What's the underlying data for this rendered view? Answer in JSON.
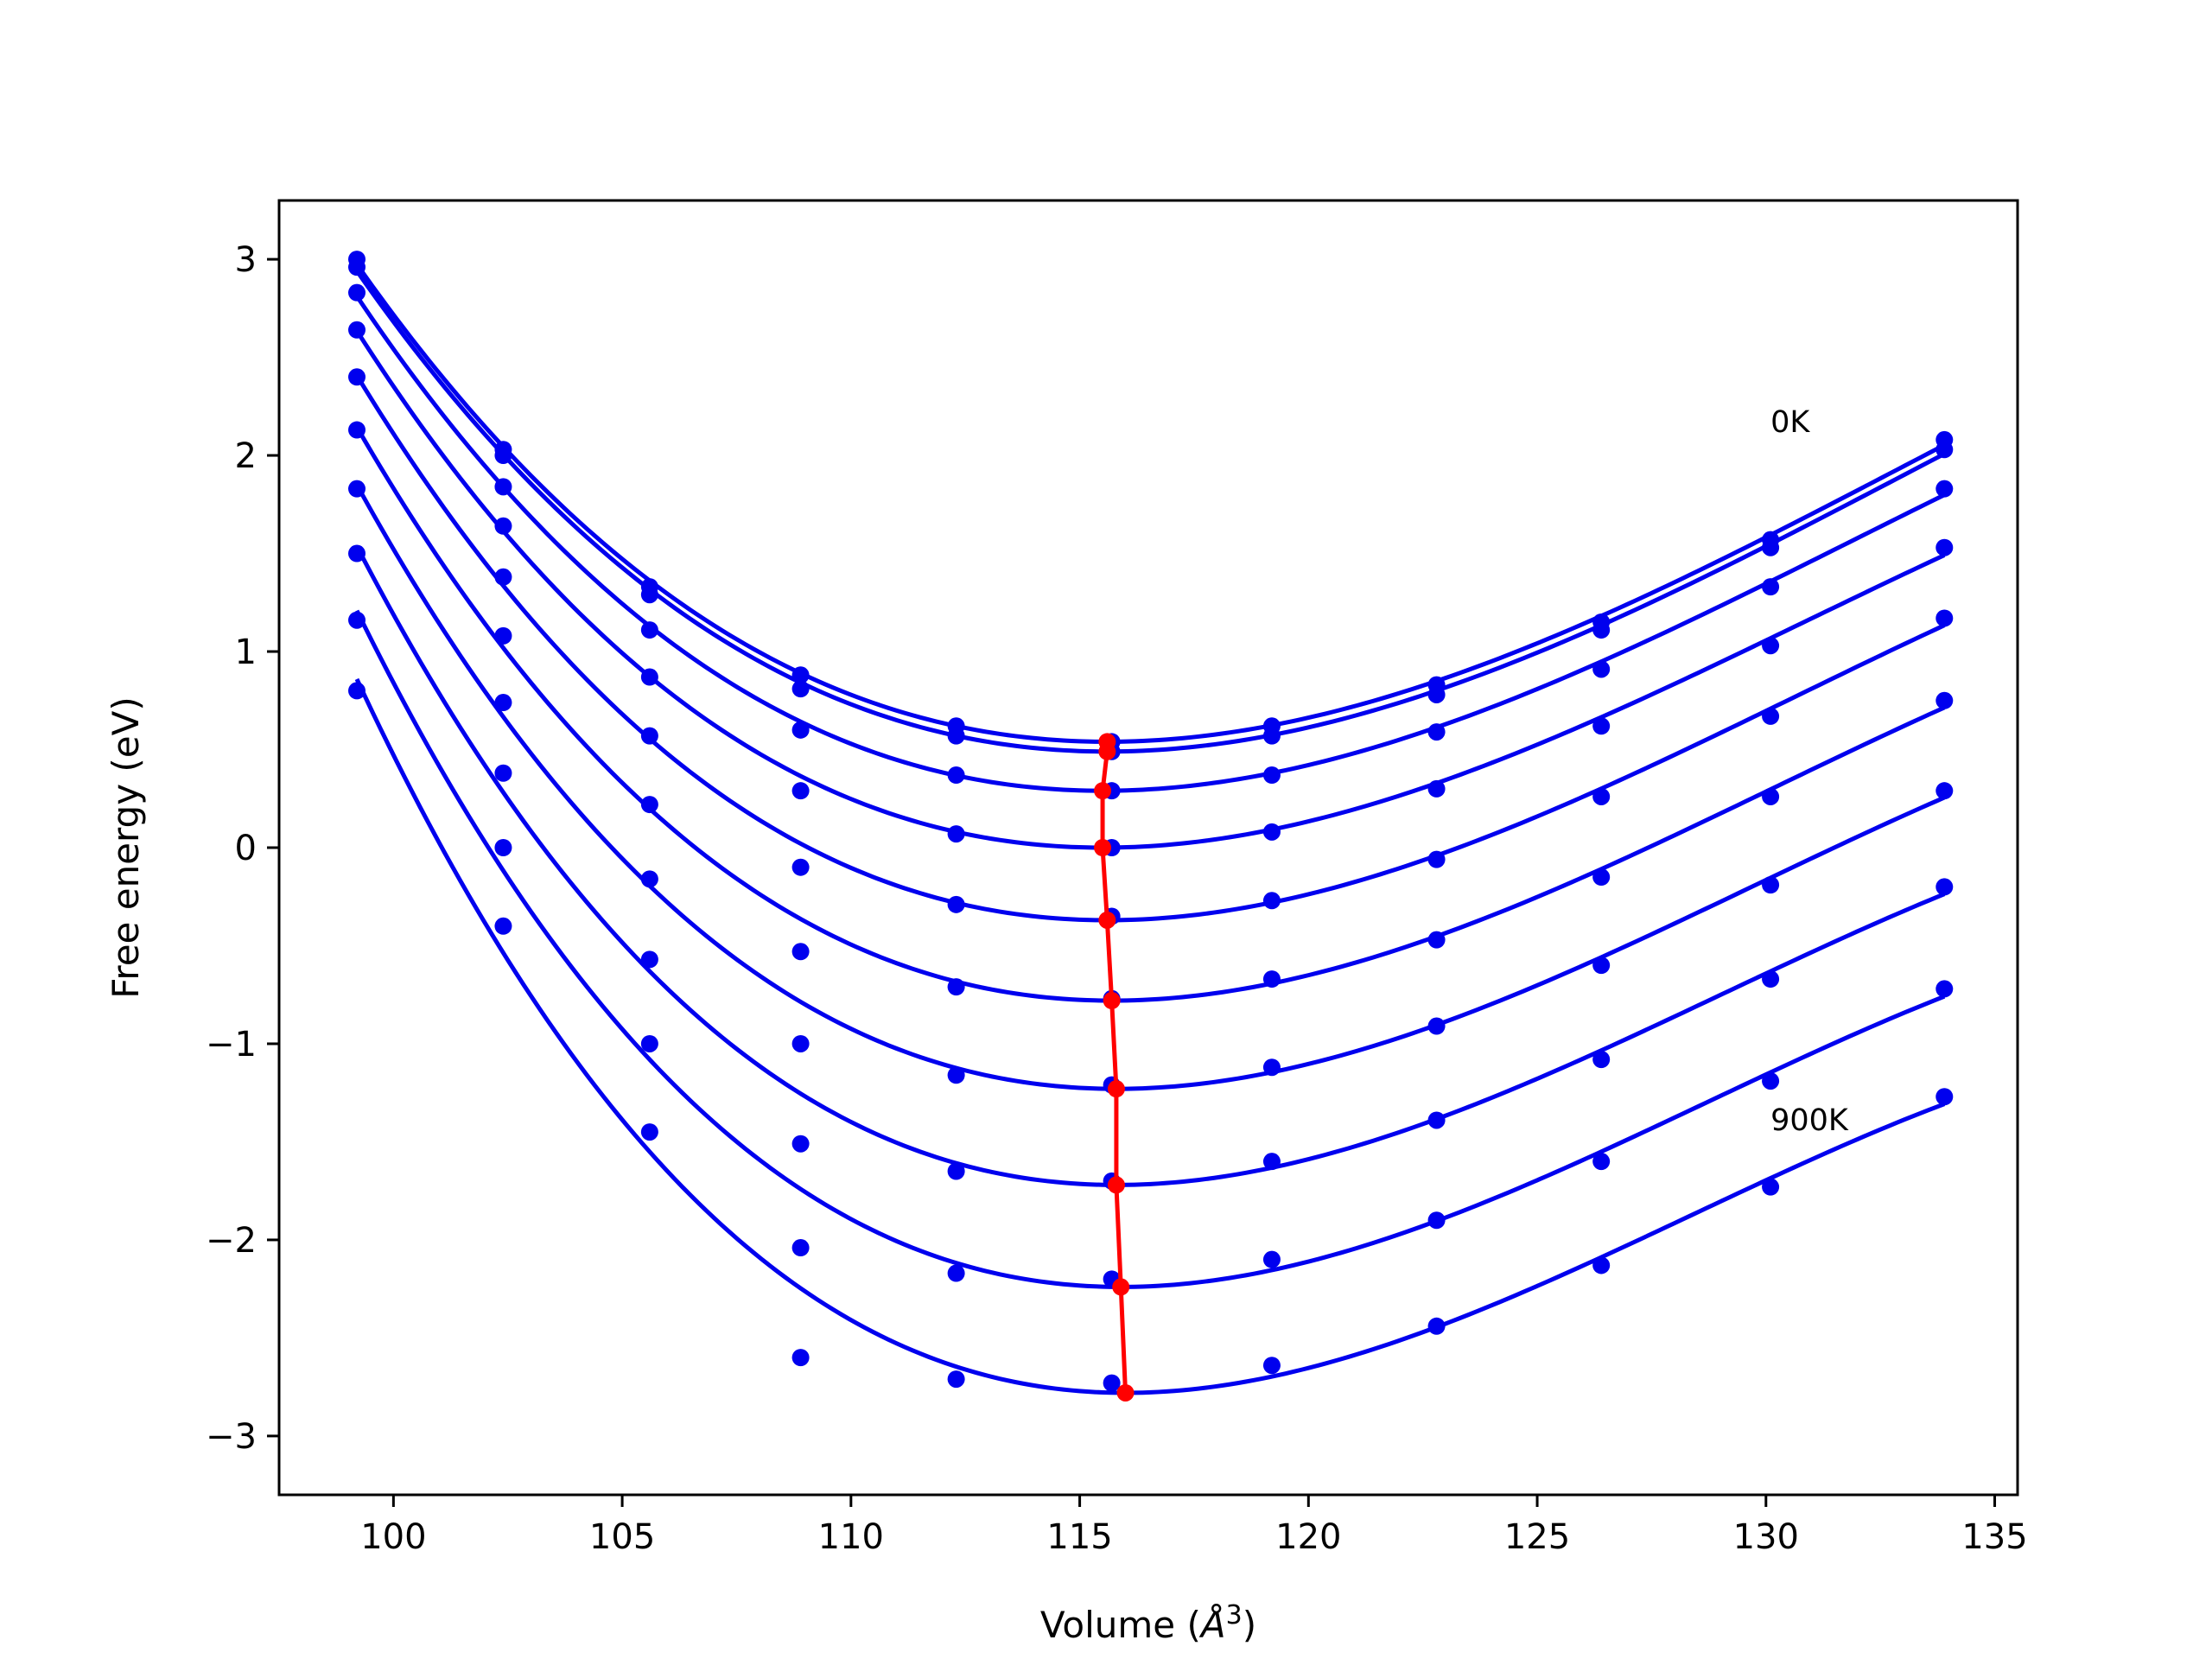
{
  "chart_data": {
    "type": "scatter",
    "xlabel": "Volume (Å³)",
    "xlabel_parts": {
      "prefix": "Volume (",
      "symbol": "Å",
      "sup": "3",
      "suffix": ")"
    },
    "ylabel": "Free energy (eV)",
    "xlim": [
      97.5,
      135.5
    ],
    "ylim": [
      -3.3,
      3.3
    ],
    "x_ticks": [
      100,
      105,
      110,
      115,
      120,
      125,
      130,
      135
    ],
    "x_tick_labels": [
      "100",
      "105",
      "110",
      "115",
      "120",
      "125",
      "130",
      "135"
    ],
    "y_ticks": [
      -3,
      -2,
      -1,
      0,
      1,
      2,
      3
    ],
    "y_tick_labels": [
      "−3",
      "−2",
      "−1",
      "0",
      "1",
      "2",
      "3"
    ],
    "volumes": [
      99.2,
      102.4,
      105.6,
      108.9,
      112.3,
      115.7,
      119.2,
      122.8,
      126.4,
      130.1,
      133.9
    ],
    "series": [
      {
        "values": [
          3.0,
          2.03,
          1.33,
          0.88,
          0.62,
          0.54,
          0.62,
          0.83,
          1.15,
          1.57,
          2.08
        ],
        "min": [
          115.6,
          0.54
        ],
        "fit_extra": [
          -1.5,
          5.5
        ]
      },
      {
        "values": [
          2.96,
          2.0,
          1.29,
          0.81,
          0.57,
          0.49,
          0.57,
          0.78,
          1.11,
          1.53,
          2.03
        ],
        "min": [
          115.6,
          0.49
        ],
        "fit_extra": [
          -1.5,
          5.5
        ]
      },
      {
        "values": [
          2.83,
          1.84,
          1.11,
          0.6,
          0.37,
          0.29,
          0.37,
          0.59,
          0.91,
          1.33,
          1.83
        ],
        "min": [
          115.5,
          0.29
        ],
        "fit_extra": [
          -1.3,
          5.5
        ]
      },
      {
        "values": [
          2.64,
          1.64,
          0.87,
          0.29,
          0.07,
          0.0,
          0.08,
          0.3,
          0.62,
          1.03,
          1.53
        ],
        "min": [
          115.5,
          0.0
        ],
        "fit_extra": [
          -1.0,
          5.5
        ]
      },
      {
        "values": [
          2.4,
          1.38,
          0.57,
          -0.1,
          -0.29,
          -0.35,
          -0.27,
          -0.06,
          0.26,
          0.67,
          1.17
        ],
        "min": [
          115.6,
          -0.37
        ],
        "fit_extra": [
          -0.8,
          5.5
        ]
      },
      {
        "values": [
          2.13,
          1.08,
          0.22,
          -0.53,
          -0.71,
          -0.77,
          -0.67,
          -0.47,
          -0.15,
          0.26,
          0.75
        ],
        "min": [
          115.7,
          -0.78
        ],
        "fit_extra": [
          -0.5,
          5.5
        ]
      },
      {
        "values": [
          1.83,
          0.74,
          -0.16,
          -1.0,
          -1.16,
          -1.21,
          -1.12,
          -0.91,
          -0.6,
          -0.19,
          0.29
        ],
        "min": [
          115.8,
          -1.23
        ],
        "fit_extra": [
          -0.3,
          5.5
        ]
      },
      {
        "values": [
          1.5,
          0.38,
          -0.57,
          -1.51,
          -1.65,
          -1.7,
          -1.6,
          -1.39,
          -1.08,
          -0.67,
          -0.2
        ],
        "min": [
          115.8,
          -1.72
        ],
        "fit_extra": [
          0.0,
          5.5
        ]
      },
      {
        "values": [
          1.16,
          0.0,
          -1.0,
          -2.04,
          -2.17,
          -2.2,
          -2.1,
          -1.9,
          -1.6,
          -1.19,
          -0.72
        ],
        "min": [
          115.9,
          -2.24
        ],
        "fit_extra": [
          0.3,
          5.5
        ]
      },
      {
        "values": [
          0.8,
          -0.4,
          -1.45,
          -2.6,
          -2.71,
          -2.73,
          -2.64,
          -2.44,
          -2.13,
          -1.73,
          -1.27
        ],
        "min": [
          116.0,
          -2.78
        ],
        "fit_extra": [
          0.6,
          5.5
        ]
      }
    ],
    "min_line": {
      "points": [
        [
          115.6,
          0.54
        ],
        [
          115.6,
          0.49
        ],
        [
          115.5,
          0.29
        ],
        [
          115.5,
          0.0
        ],
        [
          115.6,
          -0.37
        ],
        [
          115.7,
          -0.78
        ],
        [
          115.8,
          -1.23
        ],
        [
          115.8,
          -1.72
        ],
        [
          115.9,
          -2.24
        ],
        [
          116.0,
          -2.78
        ]
      ]
    },
    "annotations": [
      {
        "text": "0K",
        "x": 130.1,
        "y": 2.12
      },
      {
        "text": "900K",
        "x": 130.1,
        "y": -1.44
      }
    ],
    "colors": {
      "series": "#0000ee",
      "min_line": "#ff0000",
      "axes": "#000000"
    },
    "grid": false,
    "legend": "none"
  }
}
